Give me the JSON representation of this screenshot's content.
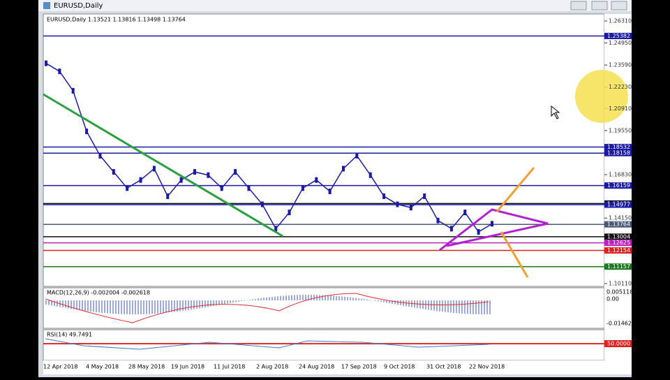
{
  "window": {
    "title": "EURUSD,Daily"
  },
  "chart": {
    "header": "EURUSD,Daily  1.13521 1.13816 1.13498 1.13764",
    "ylim": [
      1.1011,
      1.2631
    ],
    "yticks": [
      {
        "value": 1.2631,
        "label": "1.26310"
      },
      {
        "value": 1.2495,
        "label": "1.24950"
      },
      {
        "value": 1.2359,
        "label": "1.23590"
      },
      {
        "value": 1.2223,
        "label": "1.22230"
      },
      {
        "value": 1.2091,
        "label": "1.20910"
      },
      {
        "value": 1.1955,
        "label": "1.19550"
      },
      {
        "value": 1.1683,
        "label": "1.16830"
      },
      {
        "value": 1.1415,
        "label": "1.14150"
      },
      {
        "value": 1.1011,
        "label": "1.10110"
      }
    ],
    "levels": [
      {
        "value": 1.25382,
        "color": "#1a1aa6"
      },
      {
        "value": 1.18532,
        "color": "#1a1aa6"
      },
      {
        "value": 1.18158,
        "color": "#1a1aa6"
      },
      {
        "value": 1.16159,
        "color": "#1a1aa6"
      },
      {
        "value": 1.15051,
        "color": "#111111"
      },
      {
        "value": 1.14977,
        "color": "#1a1aa6"
      },
      {
        "value": 1.13764,
        "color": "#4a5a78"
      },
      {
        "value": 1.13004,
        "color": "#111111"
      },
      {
        "value": 1.12625,
        "color": "#c020c0"
      },
      {
        "value": 1.12154,
        "color": "#e02020"
      },
      {
        "value": 1.11157,
        "color": "#1e7a1e"
      }
    ],
    "closes": [
      1.237,
      1.232,
      1.22,
      1.195,
      1.18,
      1.17,
      1.16,
      1.165,
      1.172,
      1.155,
      1.165,
      1.17,
      1.168,
      1.16,
      1.17,
      1.16,
      1.15,
      1.135,
      1.145,
      1.16,
      1.165,
      1.158,
      1.172,
      1.18,
      1.168,
      1.155,
      1.15,
      1.148,
      1.155,
      1.14,
      1.135,
      1.145,
      1.133,
      1.138
    ],
    "dates": [
      "12 Apr 2018",
      "4 May 2018",
      "28 May 2018",
      "19 Jun 2018",
      "11 Jul 2018",
      "2 Aug 2018",
      "24 Aug 2018",
      "17 Sep 2018",
      "9 Oct 2018",
      "31 Oct 2018",
      "22 Nov 2018"
    ]
  },
  "macd": {
    "header": "MACD(12,26,9) -0.002004 -0.002618",
    "ticks": [
      "0.005118",
      "0.00",
      "-0.01462"
    ]
  },
  "rsi": {
    "header": "RSI(14) 49.7491",
    "level": "50.0000"
  }
}
